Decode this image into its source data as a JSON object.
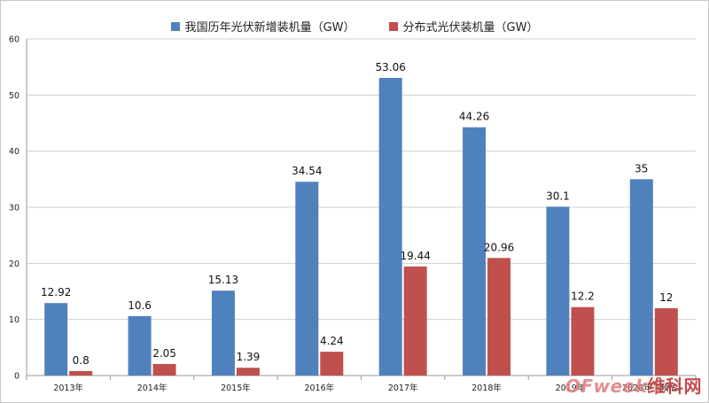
{
  "chart_data": {
    "type": "bar",
    "categories": [
      "2013年",
      "2014年",
      "2015年",
      "2016年",
      "2017年",
      "2018年",
      "2019年",
      "2020年（预估）"
    ],
    "series": [
      {
        "name": "我国历年光伏新增装机量（GW）",
        "color": "#4f81bd",
        "values": [
          12.92,
          10.6,
          15.13,
          34.54,
          53.06,
          44.26,
          30.1,
          35
        ],
        "labels": [
          "12.92",
          "10.6",
          "15.13",
          "34.54",
          "53.06",
          "44.26",
          "30.1",
          "35"
        ]
      },
      {
        "name": "分布式光伏装机量（GW）",
        "color": "#c0504d",
        "values": [
          0.8,
          2.05,
          1.39,
          4.24,
          19.44,
          20.96,
          12.2,
          12
        ],
        "labels": [
          "0.8",
          "2.05",
          "1.39",
          "4.24",
          "19.44",
          "20.96",
          "12.2",
          "12"
        ]
      }
    ],
    "ylim": [
      0,
      60
    ],
    "yticks": [
      "0",
      "10",
      "20",
      "30",
      "40",
      "50",
      "60"
    ],
    "grid": true,
    "legend_position": "top-center"
  },
  "watermark": {
    "brand": "OFweek",
    "site": "维科网"
  }
}
